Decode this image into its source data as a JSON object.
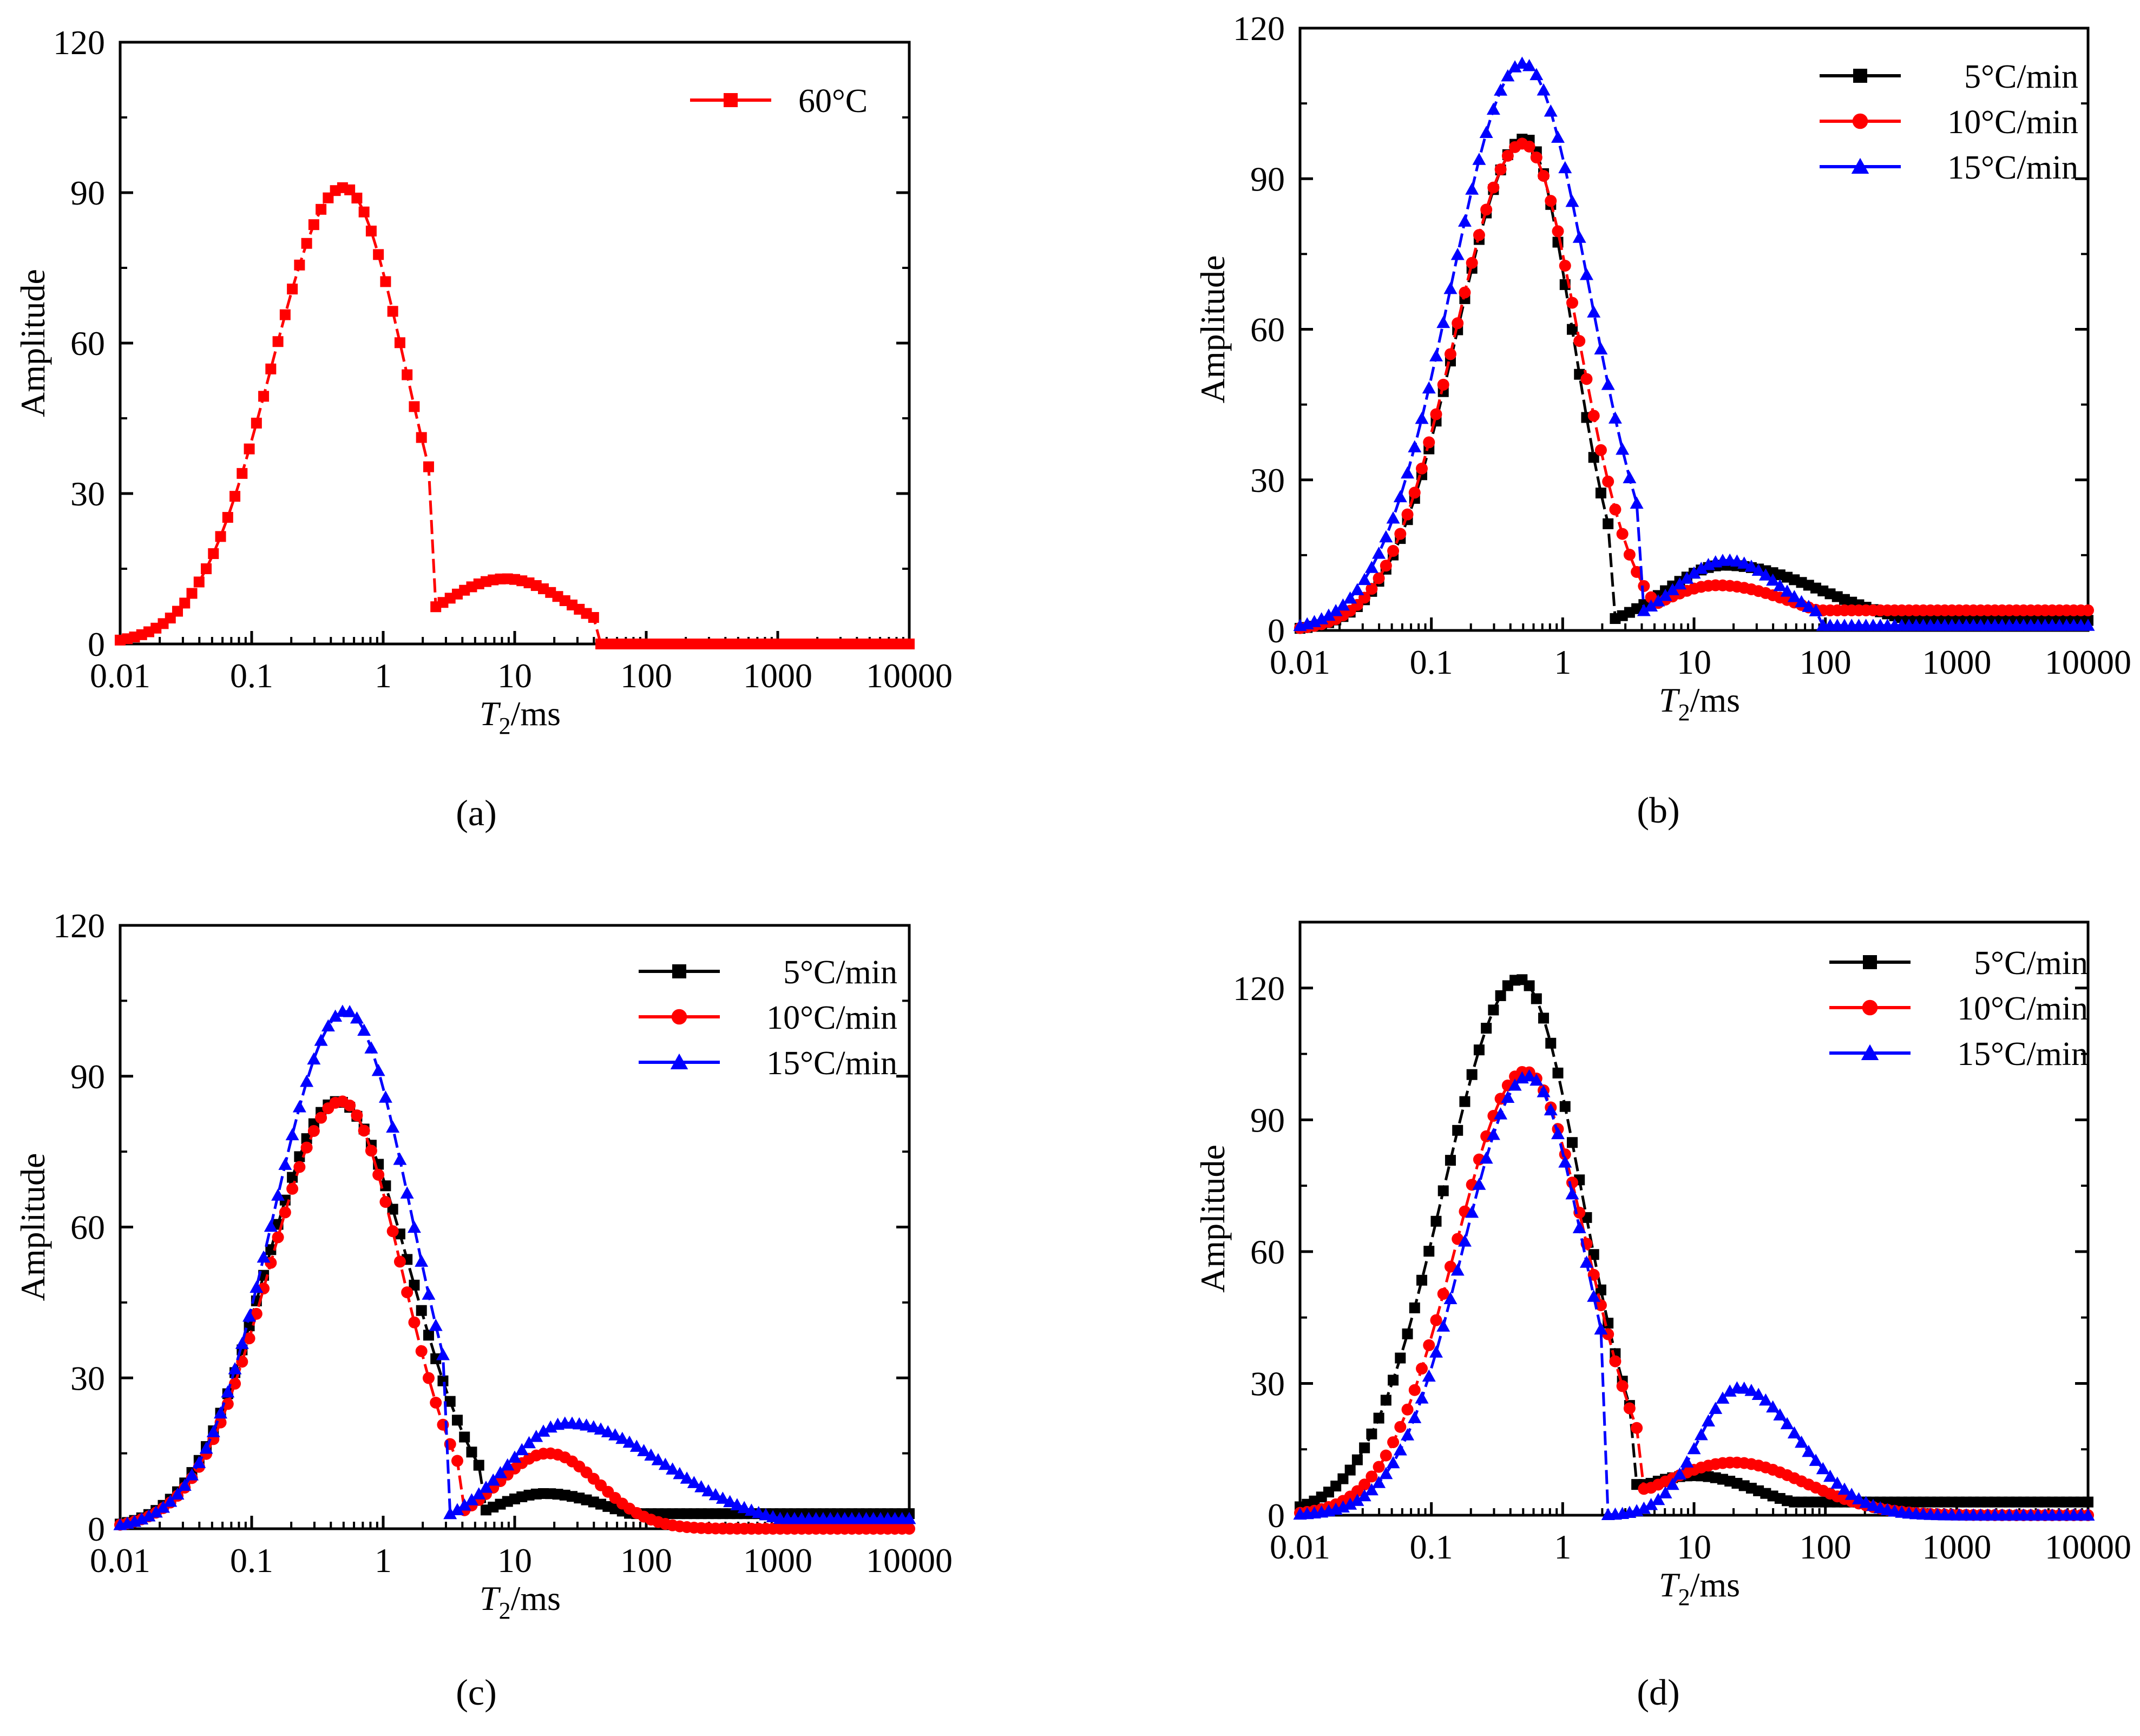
{
  "figure": {
    "panels": [
      "a",
      "b",
      "c",
      "d"
    ]
  },
  "chart_data": [
    {
      "id": "a",
      "type": "line",
      "caption": "(a)",
      "x_scale": "log",
      "xlim": [
        0.01,
        10000
      ],
      "ylim": [
        0,
        120
      ],
      "xticks": [
        "0.01",
        "0.1",
        "1",
        "10",
        "100",
        "1000",
        "10000"
      ],
      "yticks": [
        "0",
        "30",
        "60",
        "90",
        "120"
      ],
      "xlabel_main": "T",
      "xlabel_sub": "2",
      "xlabel_rest": "/ms",
      "ylabel": "Amplitude",
      "legend_position": "top-right",
      "series": [
        {
          "name": "60°C",
          "color": "#ff0000",
          "marker": "square",
          "peaks": [
            {
              "center": 0.5,
              "height": 91,
              "width_left": 0.55,
              "width_right": 0.47
            },
            {
              "center": 8.5,
              "height": 13,
              "width_left": 0.5,
              "width_right": 0.5
            }
          ],
          "min": 2.5,
          "min_value": 3,
          "cutoff": 42,
          "tail": 0
        }
      ]
    },
    {
      "id": "b",
      "type": "line",
      "caption": "(b)",
      "x_scale": "log",
      "xlim": [
        0.01,
        10000
      ],
      "ylim": [
        0,
        120
      ],
      "xticks": [
        "0.01",
        "0.1",
        "1",
        "10",
        "100",
        "1000",
        "10000"
      ],
      "yticks": [
        "0",
        "30",
        "60",
        "90",
        "120"
      ],
      "xlabel_main": "T",
      "xlabel_sub": "2",
      "xlabel_rest": "/ms",
      "ylabel": "Amplitude",
      "legend_position": "top-right",
      "series": [
        {
          "name": "5°C/min",
          "color": "#000000",
          "marker": "square",
          "peaks": [
            {
              "center": 0.52,
              "height": 98,
              "width_left": 0.52,
              "width_right": 0.36
            },
            {
              "center": 17,
              "height": 13,
              "width_left": 0.45,
              "width_right": 0.75
            }
          ],
          "min": 2.5,
          "min_value": 0,
          "cutoff": null,
          "tail": 2
        },
        {
          "name": "10°C/min",
          "color": "#ff0000",
          "marker": "circle",
          "peaks": [
            {
              "center": 0.5,
              "height": 97,
              "width_left": 0.52,
              "width_right": 0.42
            },
            {
              "center": 15,
              "height": 9,
              "width_left": 0.45,
              "width_right": 0.6
            }
          ],
          "min": 5,
          "min_value": 5,
          "cutoff": null,
          "tail": 4
        },
        {
          "name": "15°C/min",
          "color": "#0000ff",
          "marker": "triangle",
          "peaks": [
            {
              "center": 0.5,
              "height": 113,
              "width_left": 0.55,
              "width_right": 0.5
            },
            {
              "center": 18,
              "height": 14,
              "width_left": 0.4,
              "width_right": 0.42
            }
          ],
          "min": 4,
          "min_value": 0,
          "cutoff": 90,
          "tail": 1
        }
      ]
    },
    {
      "id": "c",
      "type": "line",
      "caption": "(c)",
      "x_scale": "log",
      "xlim": [
        0.01,
        10000
      ],
      "ylim": [
        0,
        120
      ],
      "xticks": [
        "0.01",
        "0.1",
        "1",
        "10",
        "100",
        "1000",
        "10000"
      ],
      "yticks": [
        "0",
        "30",
        "60",
        "90",
        "120"
      ],
      "xlabel_main": "T",
      "xlabel_sub": "2",
      "xlabel_rest": "/ms",
      "ylabel": "Amplitude",
      "legend_position": "top-right",
      "series": [
        {
          "name": "5°C/min",
          "color": "#000000",
          "marker": "square",
          "peaks": [
            {
              "center": 0.45,
              "height": 85,
              "width_left": 0.55,
              "width_right": 0.55
            },
            {
              "center": 17,
              "height": 7,
              "width_left": 0.4,
              "width_right": 0.5
            }
          ],
          "min": 5.5,
          "min_value": 2,
          "cutoff": null,
          "tail": 3
        },
        {
          "name": "10°C/min",
          "color": "#ff0000",
          "marker": "circle",
          "peaks": [
            {
              "center": 0.48,
              "height": 85,
              "width_left": 0.55,
              "width_right": 0.46
            },
            {
              "center": 18,
              "height": 15,
              "width_left": 0.38,
              "width_right": 0.38
            }
          ],
          "min": 4,
          "min_value": 0,
          "cutoff": null,
          "tail": 0
        },
        {
          "name": "15°C/min",
          "color": "#0000ff",
          "marker": "triangle",
          "peaks": [
            {
              "center": 0.52,
              "height": 103,
              "width_left": 0.55,
              "width_right": 0.5
            },
            {
              "center": 25,
              "height": 21,
              "width_left": 0.45,
              "width_right": 0.75
            }
          ],
          "min": 3,
          "min_value": 0,
          "cutoff": null,
          "tail": 2
        }
      ]
    },
    {
      "id": "d",
      "type": "line",
      "caption": "(d)",
      "x_scale": "log",
      "xlim": [
        0.01,
        10000
      ],
      "ylim": [
        0,
        135
      ],
      "xticks": [
        "0.01",
        "0.1",
        "1",
        "10",
        "100",
        "1000",
        "10000"
      ],
      "yticks": [
        "0",
        "30",
        "60",
        "90",
        "120"
      ],
      "xlabel_main": "T",
      "xlabel_sub": "2",
      "xlabel_rest": "/ms",
      "ylabel": "Amplitude",
      "legend_position": "top-right",
      "series": [
        {
          "name": "5°C/min",
          "color": "#000000",
          "marker": "square",
          "peaks": [
            {
              "center": 0.47,
              "height": 122,
              "width_left": 0.58,
              "width_right": 0.47
            },
            {
              "center": 10,
              "height": 9,
              "width_left": 0.5,
              "width_right": 0.5
            }
          ],
          "min": 3.5,
          "min_value": 7,
          "cutoff": null,
          "tail": 3
        },
        {
          "name": "10°C/min",
          "color": "#ff0000",
          "marker": "circle",
          "peaks": [
            {
              "center": 0.52,
              "height": 101,
              "width_left": 0.53,
              "width_right": 0.47
            },
            {
              "center": 20,
              "height": 12,
              "width_left": 0.55,
              "width_right": 0.55
            }
          ],
          "min": 4,
          "min_value": 6,
          "cutoff": null,
          "tail": 0
        },
        {
          "name": "15°C/min",
          "color": "#0000ff",
          "marker": "triangle",
          "peaks": [
            {
              "center": 0.55,
              "height": 100,
              "width_left": 0.5,
              "width_right": 0.42
            },
            {
              "center": 22,
              "height": 29,
              "width_left": 0.3,
              "width_right": 0.45
            }
          ],
          "min": 2,
          "min_value": 0,
          "cutoff": null,
          "tail": 0
        }
      ]
    }
  ]
}
